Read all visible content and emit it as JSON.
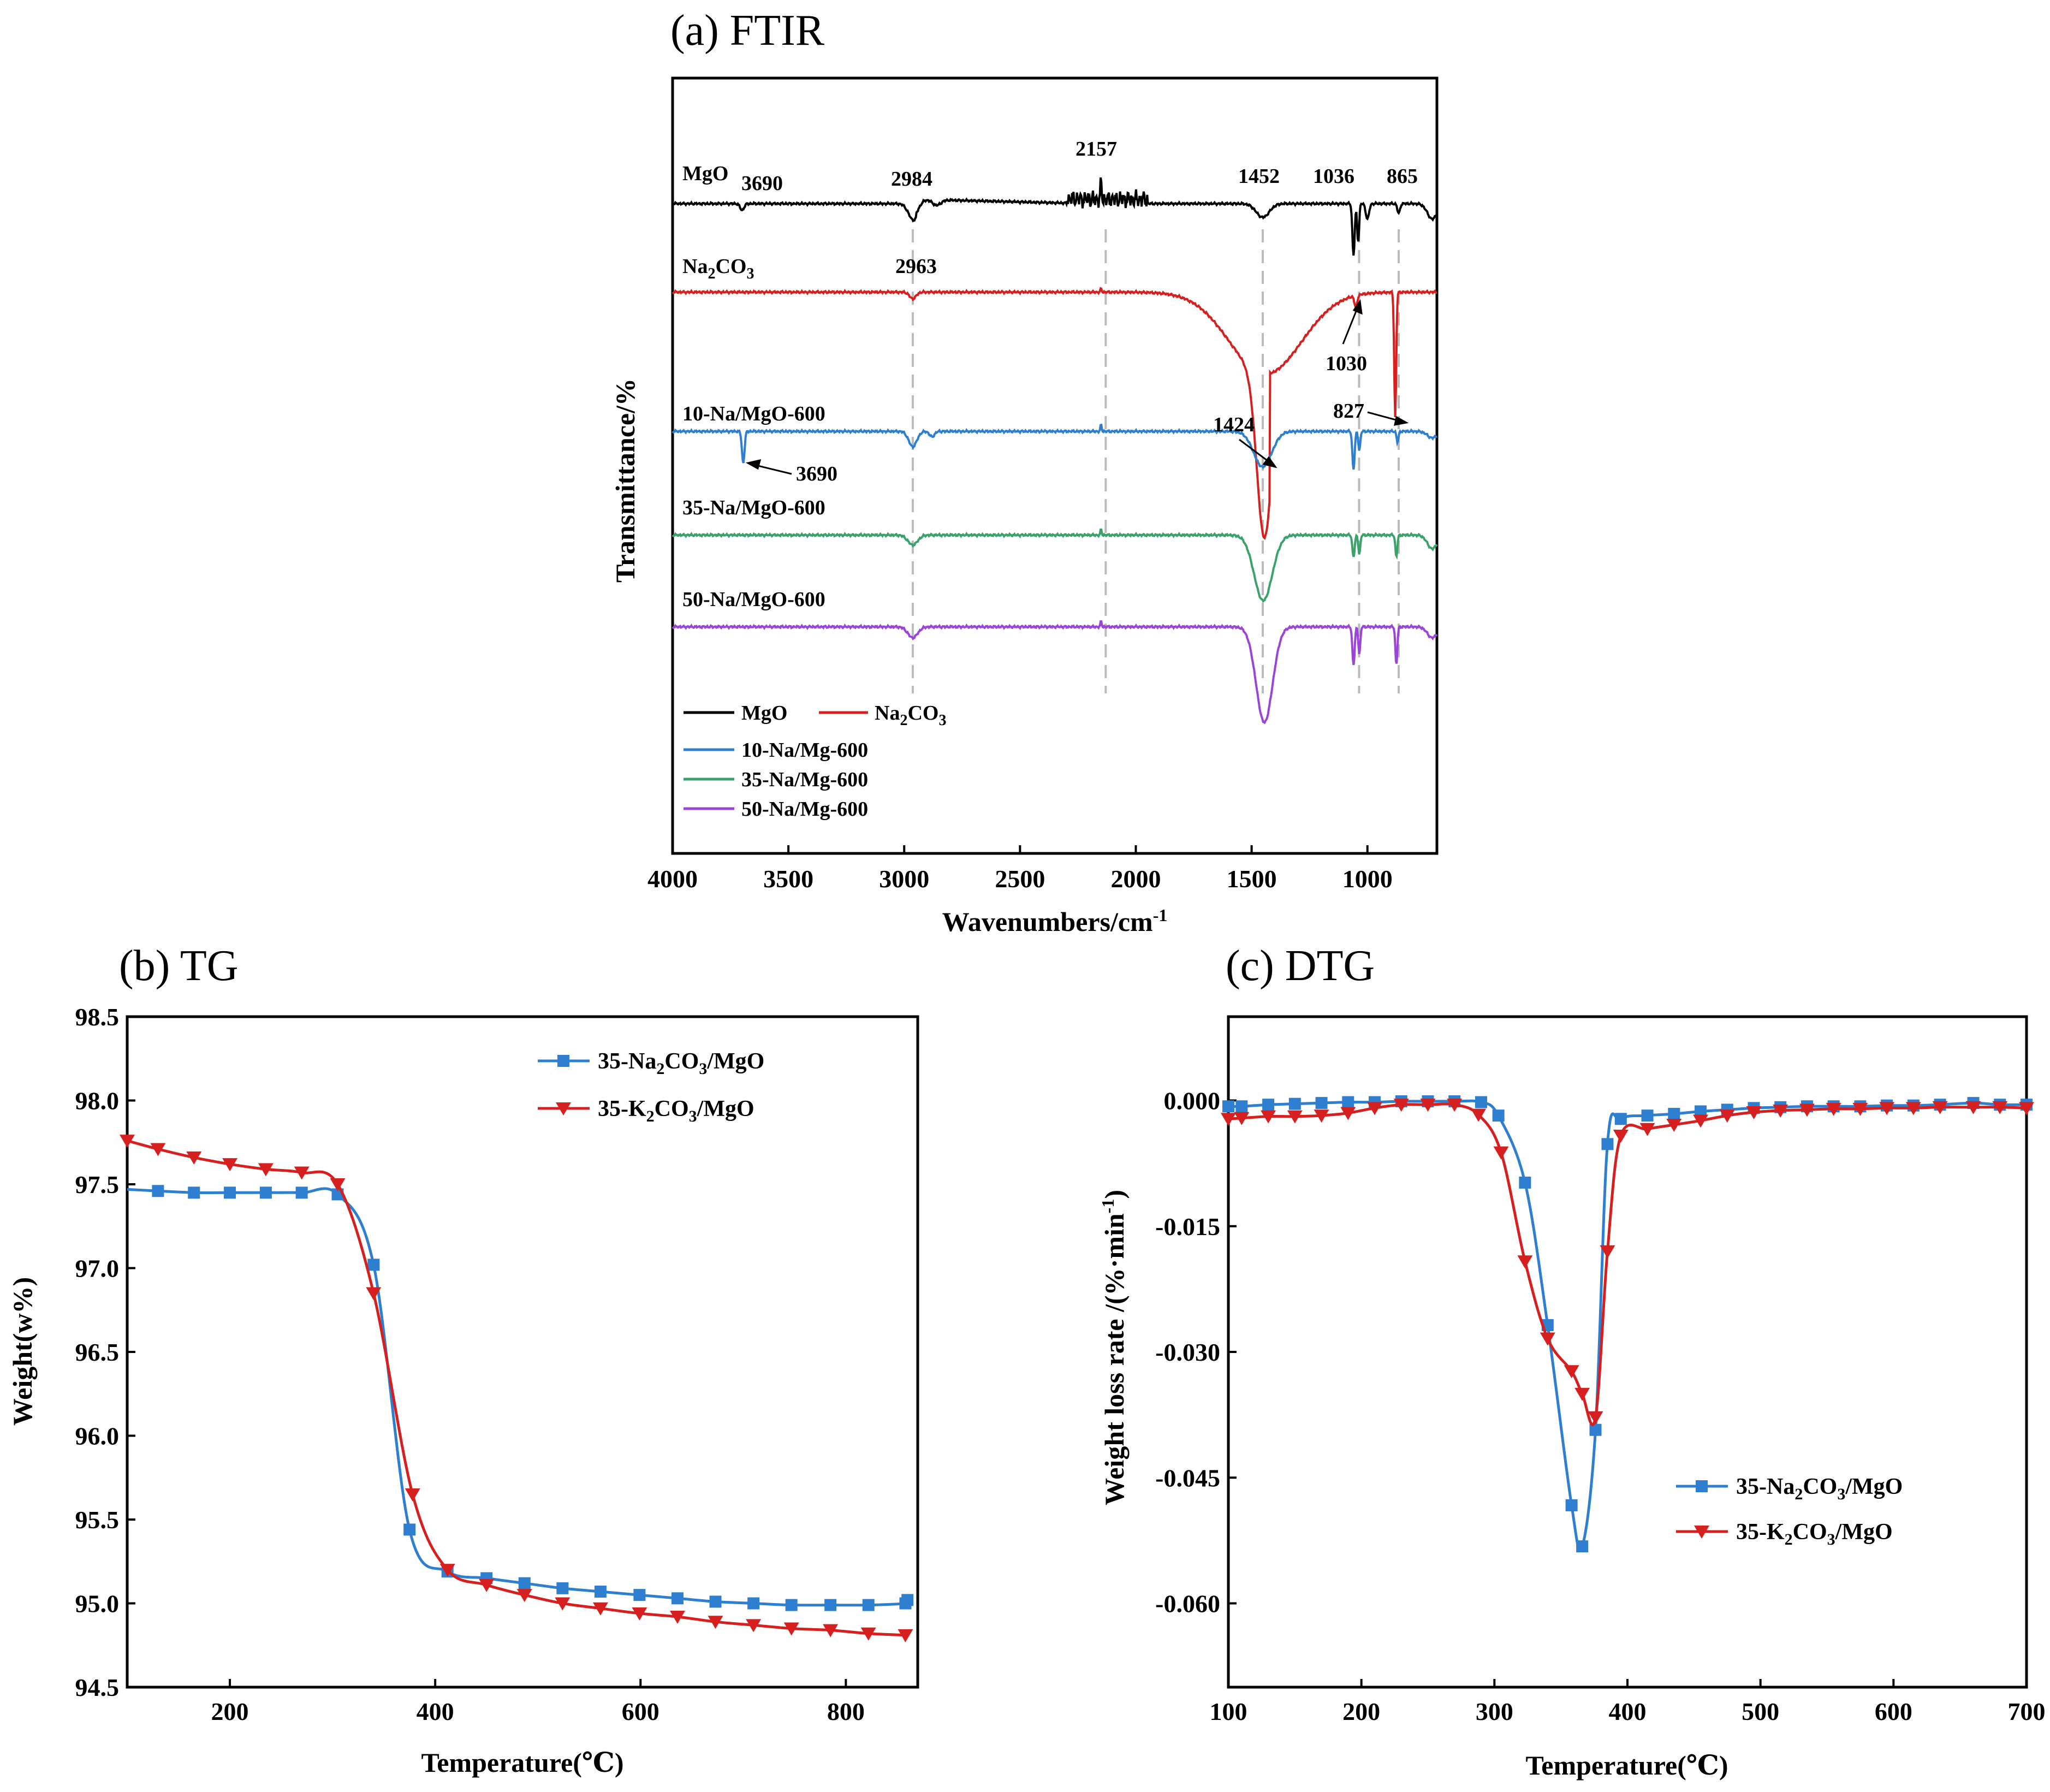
{
  "colors": {
    "black": "#000000",
    "red": "#d62020",
    "blue": "#2f7fd0",
    "green": "#3aa26a",
    "purple": "#9b45d6",
    "grid": "#bbbbbb"
  },
  "chart_data": [
    {
      "type": "line",
      "title": "(a) FTIR",
      "xlabel": "Wavenumbers/cm",
      "xlabel_superscript": "-1",
      "ylabel": "Transmittance/%",
      "xlim": [
        4000,
        700
      ],
      "xticks": [
        "4000",
        "3500",
        "3000",
        "2500",
        "2000",
        "1500",
        "1000"
      ],
      "reference_lines": [
        2963,
        2130,
        1452,
        1036,
        865
      ],
      "series": [
        {
          "name": "MgO",
          "label": "MgO",
          "offset": 0,
          "peaks": [
            "3690",
            "2984",
            "2157",
            "1452",
            "1036",
            "865"
          ]
        },
        {
          "name": "Na2CO3",
          "label_main": "Na",
          "label_sub1": "2",
          "label_mid": "CO",
          "label_sub2": "3",
          "offset": 1,
          "peaks": [
            "2963",
            "1030"
          ]
        },
        {
          "name": "10-Na/MgO-600",
          "label": "10-Na/MgO-600",
          "offset": 2,
          "peaks": [
            "1424",
            "827",
            "3690"
          ]
        },
        {
          "name": "35-Na/MgO-600",
          "label": "35-Na/MgO-600",
          "offset": 3
        },
        {
          "name": "50-Na/MgO-600",
          "label": "50-Na/MgO-600",
          "offset": 4
        }
      ],
      "legend": {
        "mgo": "MgO",
        "na2co3_main": "Na",
        "na2co3_sub1": "2",
        "na2co3_mid": "CO",
        "na2co3_sub2": "3",
        "s10": "10-Na/Mg-600",
        "s35": "35-Na/Mg-600",
        "s50": "50-Na/Mg-600"
      }
    },
    {
      "type": "line",
      "title": "(b) TG",
      "xlabel": "Temperature(℃)",
      "ylabel": "Weight(w%)",
      "xlim": [
        100,
        870
      ],
      "ylim": [
        94.5,
        98.5
      ],
      "xticks": [
        "200",
        "400",
        "600",
        "800"
      ],
      "yticks": [
        "94.5",
        "95.0",
        "95.5",
        "96.0",
        "96.5",
        "97.0",
        "97.5",
        "98.0",
        "98.5"
      ],
      "series": [
        {
          "name": "35-Na2CO3/MgO",
          "x": [
            100,
            130,
            165,
            200,
            235,
            270,
            305,
            340,
            375,
            412,
            450,
            487,
            524,
            561,
            599,
            636,
            673,
            710,
            747,
            785,
            822,
            858,
            860
          ],
          "y": [
            97.47,
            97.46,
            97.45,
            97.45,
            97.45,
            97.45,
            97.44,
            97.02,
            95.44,
            95.19,
            95.15,
            95.12,
            95.09,
            95.07,
            95.05,
            95.03,
            95.01,
            95.0,
            94.99,
            94.99,
            94.99,
            95.0,
            95.02
          ]
        },
        {
          "name": "35-K2CO3/MgO",
          "x": [
            100,
            130,
            165,
            200,
            235,
            270,
            305,
            340,
            378,
            412,
            450,
            487,
            524,
            561,
            599,
            636,
            673,
            710,
            747,
            785,
            822,
            858
          ],
          "y": [
            97.76,
            97.71,
            97.66,
            97.62,
            97.59,
            97.57,
            97.5,
            96.85,
            95.65,
            95.2,
            95.11,
            95.05,
            95.0,
            94.97,
            94.94,
            94.92,
            94.89,
            94.87,
            94.85,
            94.84,
            94.82,
            94.81
          ]
        }
      ],
      "legend": {
        "na_pre": "35-Na",
        "na_sub1": "2",
        "na_mid": "CO",
        "na_sub2": "3",
        "na_post": "/MgO",
        "k_pre": "35-K",
        "k_sub1": "2",
        "k_mid": "CO",
        "k_sub2": "3",
        "k_post": "/MgO"
      }
    },
    {
      "type": "line",
      "title": "(c) DTG",
      "xlabel": "Temperature(℃)",
      "ylabel": "Weight loss rate /(%·min",
      "ylabel_superscript": "-1",
      "ylabel_close": ")",
      "xlim": [
        100,
        700
      ],
      "ylim": [
        -0.07,
        0.01
      ],
      "xticks": [
        "100",
        "200",
        "300",
        "400",
        "500",
        "600",
        "700"
      ],
      "yticks": [
        "0.000",
        "-0.015",
        "-0.030",
        "-0.045",
        "-0.060"
      ],
      "series": [
        {
          "name": "35-Na2CO3/MgO",
          "x": [
            100,
            110,
            130,
            150,
            170,
            190,
            210,
            230,
            250,
            270,
            290,
            303,
            323,
            340,
            358,
            366,
            376,
            385,
            395,
            415,
            435,
            455,
            475,
            495,
            515,
            535,
            555,
            575,
            595,
            615,
            635,
            660,
            680,
            700
          ],
          "y": [
            -0.0007,
            -0.0007,
            -0.0005,
            -0.0004,
            -0.0003,
            -0.0002,
            -0.0002,
            -0.0001,
            -0.0001,
            -0.0001,
            -0.0002,
            -0.0018,
            -0.0098,
            -0.0268,
            -0.0483,
            -0.0532,
            -0.0393,
            -0.0052,
            -0.0022,
            -0.0018,
            -0.0016,
            -0.0013,
            -0.0011,
            -0.0009,
            -0.0008,
            -0.0007,
            -0.0007,
            -0.0007,
            -0.0006,
            -0.0006,
            -0.0005,
            -0.0003,
            -0.0005,
            -0.0005
          ]
        },
        {
          "name": "35-K2CO3/MgO",
          "x": [
            100,
            110,
            130,
            150,
            170,
            190,
            210,
            230,
            250,
            270,
            288,
            305,
            323,
            340,
            358,
            366,
            376,
            385,
            395,
            415,
            435,
            455,
            475,
            495,
            515,
            535,
            555,
            575,
            595,
            615,
            635,
            660,
            680,
            700
          ],
          "y": [
            -0.0022,
            -0.0021,
            -0.0019,
            -0.0019,
            -0.0018,
            -0.0015,
            -0.0009,
            -0.0005,
            -0.0005,
            -0.0005,
            -0.0017,
            -0.0062,
            -0.0192,
            -0.0284,
            -0.0323,
            -0.035,
            -0.0378,
            -0.018,
            -0.0042,
            -0.0034,
            -0.0029,
            -0.0024,
            -0.0018,
            -0.0014,
            -0.0012,
            -0.0011,
            -0.001,
            -0.001,
            -0.0009,
            -0.0009,
            -0.0008,
            -0.0008,
            -0.0008,
            -0.0009
          ]
        }
      ],
      "legend": {
        "na_pre": "35-Na",
        "na_sub1": "2",
        "na_mid": "CO",
        "na_sub2": "3",
        "na_post": "/MgO",
        "k_pre": "35-K",
        "k_sub1": "2",
        "k_mid": "CO",
        "k_sub2": "3",
        "k_post": "/MgO"
      }
    }
  ]
}
